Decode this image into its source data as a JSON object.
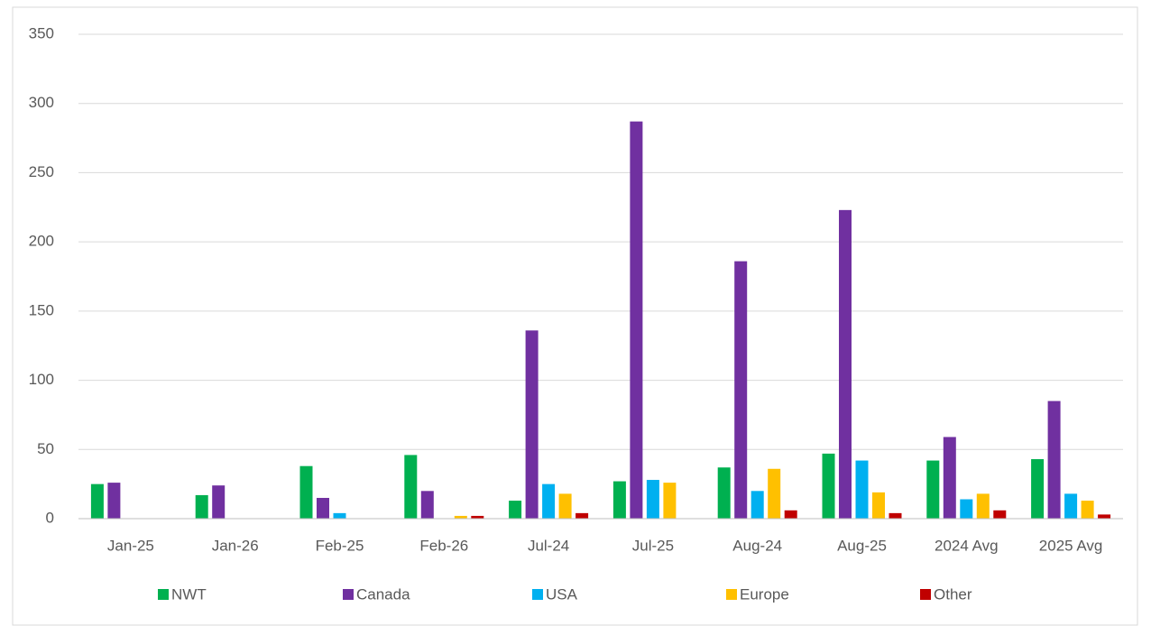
{
  "chart_data": {
    "type": "bar",
    "categories": [
      "Jan-25",
      "Jan-26",
      "Feb-25",
      "Feb-26",
      "Jul-24",
      "Jul-25",
      "Aug-24",
      "Aug-25",
      "2024 Avg",
      "2025 Avg"
    ],
    "series": [
      {
        "name": "NWT",
        "color": "#00b050",
        "values": [
          25,
          17,
          38,
          46,
          13,
          27,
          37,
          47,
          42,
          43
        ]
      },
      {
        "name": "Canada",
        "color": "#7030a0",
        "values": [
          26,
          24,
          15,
          20,
          136,
          287,
          186,
          223,
          59,
          85
        ]
      },
      {
        "name": "USA",
        "color": "#00b0f0",
        "values": [
          0,
          0,
          4,
          0,
          25,
          28,
          20,
          42,
          14,
          18
        ]
      },
      {
        "name": "Europe",
        "color": "#ffc000",
        "values": [
          0,
          0,
          0,
          2,
          18,
          26,
          36,
          19,
          18,
          13
        ]
      },
      {
        "name": "Other",
        "color": "#c00000",
        "values": [
          0,
          0,
          0,
          2,
          4,
          0,
          6,
          4,
          6,
          3
        ]
      }
    ],
    "ylim": [
      0,
      350
    ],
    "yticks": [
      0,
      50,
      100,
      150,
      200,
      250,
      300,
      350
    ],
    "grid": true,
    "legend": "bottom"
  }
}
